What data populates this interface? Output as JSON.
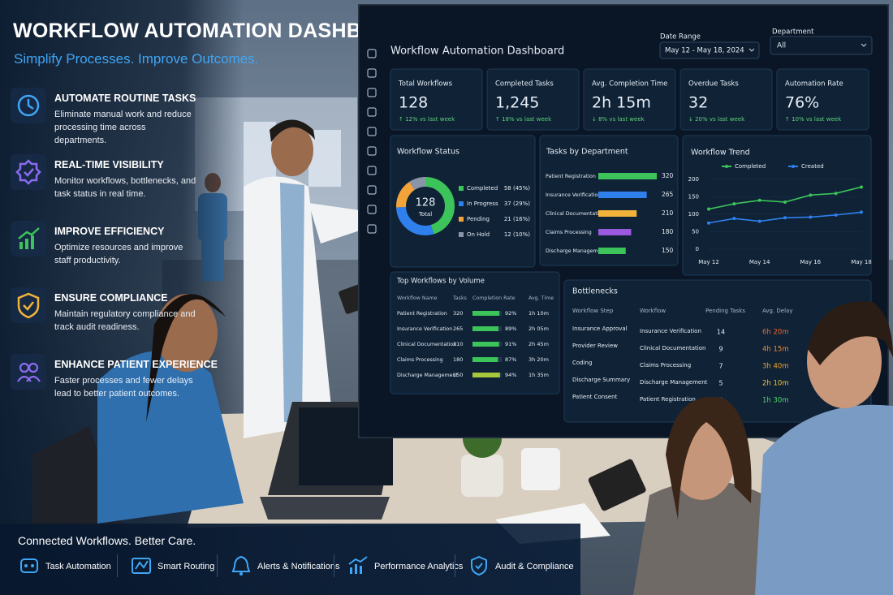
{
  "header": {
    "title": "WORKFLOW AUTOMATION DASHBOARD",
    "subtitle": "Simplify Processes. Improve Outcomes."
  },
  "features": [
    {
      "title": "AUTOMATE ROUTINE TASKS",
      "text": "Eliminate manual work and reduce processing time across departments."
    },
    {
      "title": "REAL-TIME VISIBILITY",
      "text": "Monitor workflows, bottlenecks, and task status in real time."
    },
    {
      "title": "IMPROVE EFFICIENCY",
      "text": "Optimize resources and improve staff productivity."
    },
    {
      "title": "ENSURE COMPLIANCE",
      "text": "Maintain regulatory compliance and track audit readiness."
    },
    {
      "title": "ENHANCE PATIENT EXPERIENCE",
      "text": "Faster processes and fewer delays lead to better patient outcomes."
    }
  ],
  "footer": {
    "tagline": "Connected Workflows. Better Care.",
    "items": [
      "Task Automation",
      "Smart Routing",
      "Alerts & Notifications",
      "Performance Analytics",
      "Audit & Compliance"
    ]
  },
  "dashboard": {
    "title": "Workflow Automation Dashboard",
    "date_range": {
      "label": "Date Range",
      "value": "May 12 - May 18, 2024"
    },
    "department": {
      "label": "Department",
      "value": "All"
    },
    "kpis": [
      {
        "label": "Total Workflows",
        "value": "128",
        "change": "↑ 12% vs last week"
      },
      {
        "label": "Completed Tasks",
        "value": "1,245",
        "change": "↑ 18% vs last week"
      },
      {
        "label": "Avg. Completion Time",
        "value": "2h 15m",
        "change": "↓ 8% vs last week"
      },
      {
        "label": "Overdue Tasks",
        "value": "32",
        "change": "↓ 20% vs last week"
      },
      {
        "label": "Automation Rate",
        "value": "76%",
        "change": "↑ 10% vs last week"
      }
    ],
    "workflow_status": {
      "type": "donut",
      "title": "Workflow Status",
      "total": "128",
      "total_label": "Total",
      "categories": [
        "Completed",
        "In Progress",
        "Pending",
        "On Hold"
      ],
      "values": [
        58,
        37,
        21,
        12
      ],
      "value_labels": [
        "58 (45%)",
        "37 (29%)",
        "21 (16%)",
        "12 (10%)"
      ],
      "colors": [
        "#3cc35a",
        "#2f80ed",
        "#f2a33a",
        "#8a96a8"
      ]
    },
    "tasks_by_department": {
      "type": "bar",
      "title": "Tasks by Department",
      "categories": [
        "Patient Registration",
        "Insurance Verification",
        "Clinical Documentation",
        "Claims Processing",
        "Discharge Management"
      ],
      "values": [
        320,
        265,
        210,
        180,
        150
      ],
      "colors": [
        "#3cc35a",
        "#2f80ed",
        "#f2b33a",
        "#9b59e0",
        "#3cc35a"
      ]
    },
    "workflow_trend": {
      "type": "line",
      "title": "Workflow Trend",
      "categories": [
        "May 12",
        null,
        "May 14",
        null,
        "May 16",
        null,
        "May 18"
      ],
      "series": [
        {
          "name": "Completed",
          "color": "#3cc35a",
          "values": [
            115,
            130,
            140,
            135,
            155,
            160,
            178
          ]
        },
        {
          "name": "Created",
          "color": "#2f80ed",
          "values": [
            75,
            88,
            80,
            90,
            92,
            98,
            106
          ]
        }
      ],
      "ylim": [
        0,
        200
      ],
      "yticks": [
        0,
        50,
        100,
        150,
        200
      ]
    },
    "top_workflows": {
      "title": "Top Workflows by Volume",
      "columns": [
        "Workflow Name",
        "Tasks",
        "Completion Rate",
        "Avg. Time"
      ],
      "rows": [
        {
          "name": "Patient Registration",
          "tasks": 320,
          "rate": 92,
          "rate_label": "92%",
          "time": "1h 10m"
        },
        {
          "name": "Insurance Verification",
          "tasks": 265,
          "rate": 89,
          "rate_label": "89%",
          "time": "2h 05m"
        },
        {
          "name": "Clinical Documentation",
          "tasks": 210,
          "rate": 91,
          "rate_label": "91%",
          "time": "2h 45m"
        },
        {
          "name": "Claims Processing",
          "tasks": 180,
          "rate": 87,
          "rate_label": "87%",
          "time": "3h 20m"
        },
        {
          "name": "Discharge Management",
          "tasks": 150,
          "rate": 94,
          "rate_label": "94%",
          "time": "1h 35m"
        }
      ]
    },
    "bottlenecks": {
      "title": "Bottlenecks",
      "columns": [
        "Workflow Step",
        "Workflow",
        "Pending Tasks",
        "Avg. Delay"
      ],
      "rows": [
        {
          "step": "Insurance Approval",
          "workflow": "Insurance Verification",
          "pending": 14,
          "delay": "6h 20m",
          "color": "#f0642e"
        },
        {
          "step": "Provider Review",
          "workflow": "Clinical Documentation",
          "pending": 9,
          "delay": "4h 15m",
          "color": "#f08a2e"
        },
        {
          "step": "Coding",
          "workflow": "Claims Processing",
          "pending": 7,
          "delay": "3h 40m",
          "color": "#f0a22e"
        },
        {
          "step": "Discharge Summary",
          "workflow": "Discharge Management",
          "pending": 5,
          "delay": "2h 10m",
          "color": "#f2c232"
        },
        {
          "step": "Patient Consent",
          "workflow": "Patient Registration",
          "pending": 4,
          "delay": "1h 30m",
          "color": "#4fd36a"
        }
      ]
    }
  }
}
